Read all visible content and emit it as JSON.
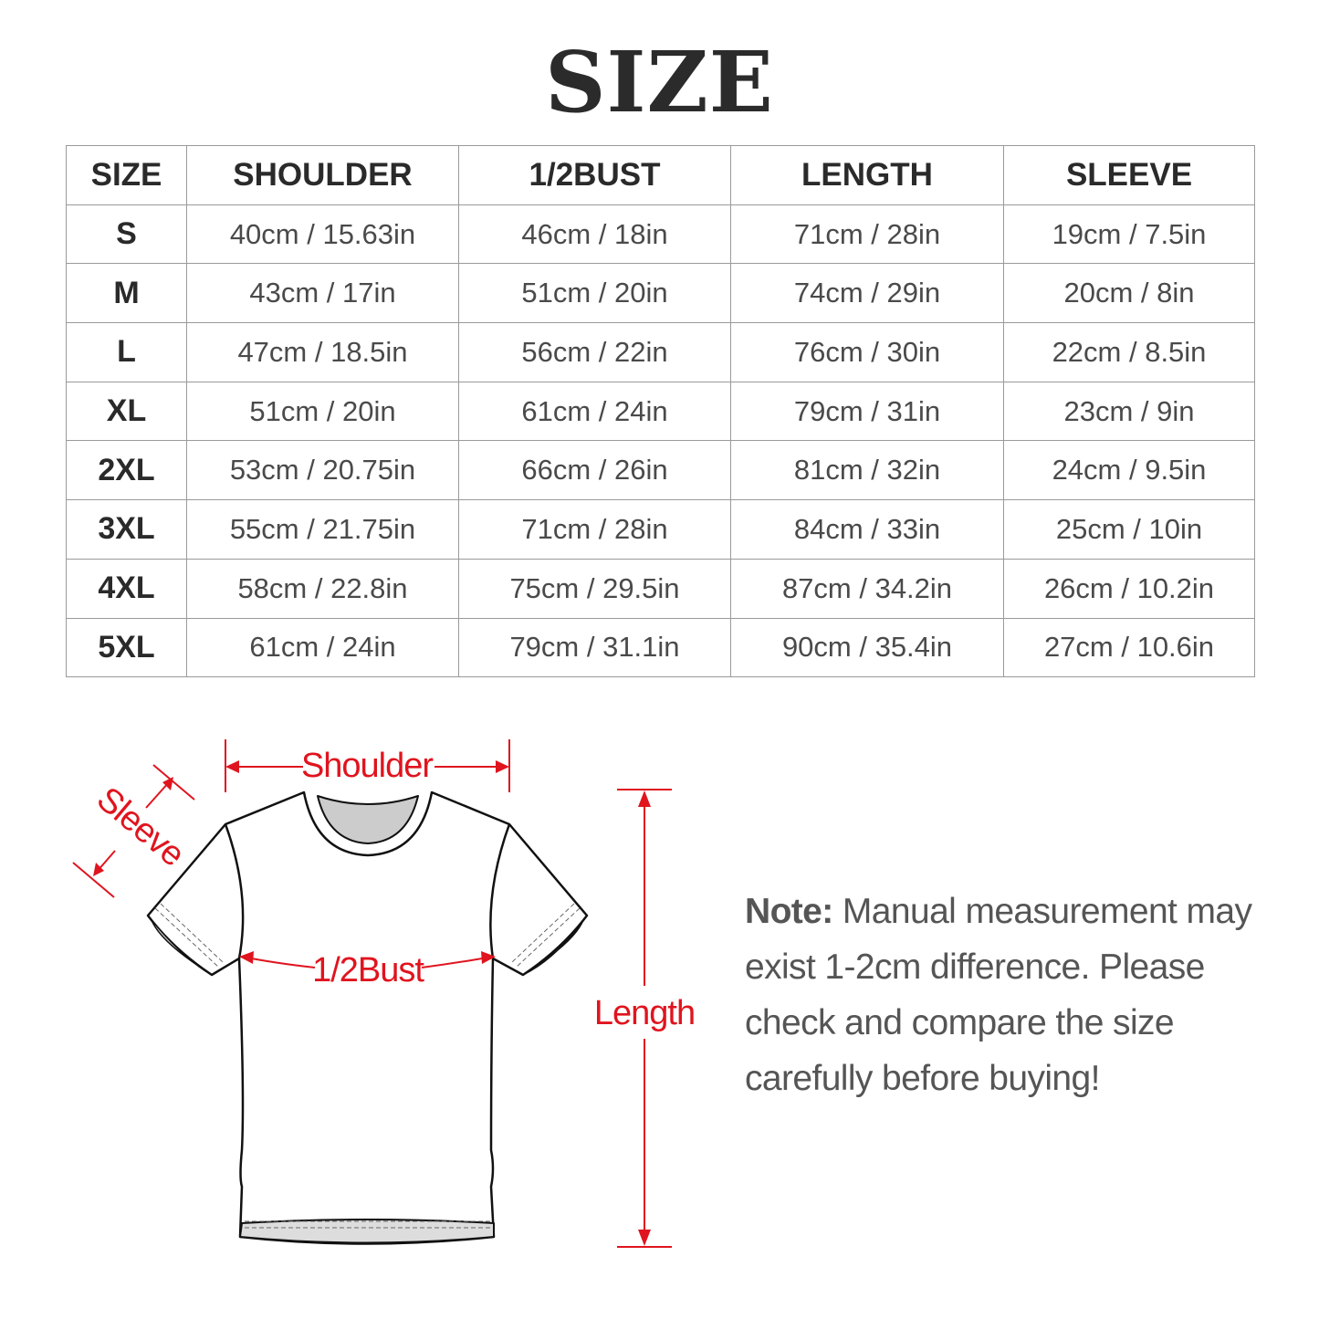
{
  "title": "SIZE",
  "table": {
    "headers": [
      "SIZE",
      "SHOULDER",
      "1/2BUST",
      "LENGTH",
      "SLEEVE"
    ],
    "rows": [
      [
        "S",
        "40cm / 15.63in",
        "46cm / 18in",
        "71cm / 28in",
        "19cm / 7.5in"
      ],
      [
        "M",
        "43cm / 17in",
        "51cm / 20in",
        "74cm / 29in",
        "20cm / 8in"
      ],
      [
        "L",
        "47cm / 18.5in",
        "56cm / 22in",
        "76cm / 30in",
        "22cm / 8.5in"
      ],
      [
        "XL",
        "51cm / 20in",
        "61cm / 24in",
        "79cm / 31in",
        "23cm / 9in"
      ],
      [
        "2XL",
        "53cm / 20.75in",
        "66cm / 26in",
        "81cm / 32in",
        "24cm / 9.5in"
      ],
      [
        "3XL",
        "55cm / 21.75in",
        "71cm / 28in",
        "84cm / 33in",
        "25cm / 10in"
      ],
      [
        "4XL",
        "58cm / 22.8in",
        "75cm / 29.5in",
        "87cm / 34.2in",
        "26cm / 10.2in"
      ],
      [
        "5XL",
        "61cm / 24in",
        "79cm / 31.1in",
        "90cm / 35.4in",
        "27cm / 10.6in"
      ]
    ]
  },
  "diagram": {
    "shoulder": "Shoulder",
    "sleeve": "Sleeve",
    "bust": "1/2Bust",
    "length": "Length",
    "accent_color": "#e0141e",
    "icon": "t-shirt-icon"
  },
  "note": {
    "label": "Note:",
    "lines": [
      "Manual measurement may",
      "exist 1-2cm difference. Please",
      "check and compare the size",
      "carefully before buying!"
    ]
  }
}
